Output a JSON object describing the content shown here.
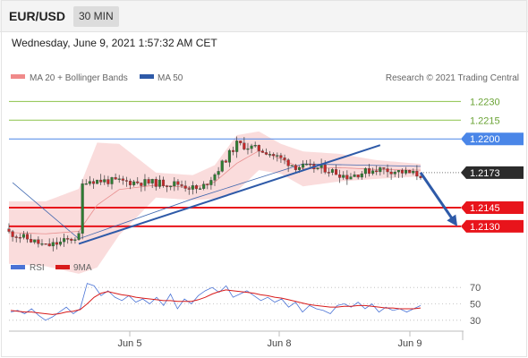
{
  "header": {
    "symbol": "EUR/USD",
    "interval": "30 MIN",
    "datetime": "Wednesday, June 9, 2021 1:57:32 AM CET"
  },
  "legend": {
    "ma20_bb": "MA 20 + Bollinger Bands",
    "ma50": "MA 50",
    "credit": "Research © 2021 Trading Central",
    "rsi": "RSI",
    "rsi_ma": "9MA"
  },
  "colors": {
    "bollinger_fill": "#f9d6d6",
    "ma20": "#e88f8f",
    "ma50": "#2e5aa8",
    "resistance_green": "#8bc34a",
    "resistance_blue": "#4a86e8",
    "support_red": "#e8141b",
    "current_price_bg": "#2b2b2b",
    "trend_line": "#2e5aa8",
    "forecast_arrow": "#2e5aa8",
    "rsi_line": "#4a73d6",
    "rsi_ma_line": "#d81b1b",
    "candle_up": "#2e7d32",
    "candle_down": "#c62828"
  },
  "chart_data": [
    {
      "type": "candlestick",
      "title": "",
      "x_labels": [
        "Jun 5",
        "Jun 8",
        "Jun 9"
      ],
      "price_range": [
        1.2112,
        1.2241
      ],
      "levels": [
        {
          "label": "1.2230",
          "value": 1.223,
          "kind": "resistance",
          "color": "#8bc34a"
        },
        {
          "label": "1.2215",
          "value": 1.2215,
          "kind": "resistance",
          "color": "#8bc34a"
        },
        {
          "label": "1.2200",
          "value": 1.22,
          "kind": "pivot",
          "color": "#4a86e8"
        },
        {
          "label": "1.2173",
          "value": 1.2173,
          "kind": "current",
          "color": "#2b2b2b"
        },
        {
          "label": "1.2145",
          "value": 1.2145,
          "kind": "support",
          "color": "#e8141b"
        },
        {
          "label": "1.2130",
          "value": 1.213,
          "kind": "support",
          "color": "#e8141b"
        }
      ],
      "close_path": [
        [
          0,
          1.2125
        ],
        [
          5,
          1.212
        ],
        [
          10,
          1.2114
        ],
        [
          14,
          1.2117
        ],
        [
          19,
          1.2122
        ],
        [
          20,
          1.2163
        ],
        [
          21,
          1.2167
        ],
        [
          30,
          1.2166
        ],
        [
          38,
          1.2165
        ],
        [
          46,
          1.2164
        ],
        [
          52,
          1.2159
        ],
        [
          56,
          1.2172
        ],
        [
          62,
          1.2196
        ],
        [
          70,
          1.219
        ],
        [
          78,
          1.2178
        ],
        [
          86,
          1.2176
        ],
        [
          92,
          1.217
        ],
        [
          100,
          1.2176
        ],
        [
          106,
          1.2174
        ],
        [
          112,
          1.2171
        ]
      ],
      "trend_line": [
        [
          19,
          1.2116
        ],
        [
          101,
          1.2195
        ]
      ],
      "ma50_path": [
        [
          1,
          1.2165
        ],
        [
          19,
          1.212
        ],
        [
          50,
          1.2152
        ],
        [
          80,
          1.218
        ],
        [
          112,
          1.2178
        ]
      ],
      "forecast_arrow": [
        [
          112,
          1.2173
        ],
        [
          122,
          1.213
        ]
      ],
      "bollinger": [
        [
          0,
          1.215,
          1.21
        ],
        [
          10,
          1.215,
          1.2098
        ],
        [
          19,
          1.216,
          1.2092
        ],
        [
          24,
          1.2197,
          1.2097
        ],
        [
          30,
          1.2196,
          1.2123
        ],
        [
          40,
          1.2173,
          1.2153
        ],
        [
          50,
          1.2171,
          1.2151
        ],
        [
          56,
          1.2179,
          1.2152
        ],
        [
          62,
          1.2203,
          1.2158
        ],
        [
          68,
          1.2206,
          1.2175
        ],
        [
          74,
          1.2196,
          1.2172
        ],
        [
          80,
          1.219,
          1.2162
        ],
        [
          90,
          1.2188,
          1.2166
        ],
        [
          100,
          1.2183,
          1.2168
        ],
        [
          112,
          1.218,
          1.217
        ]
      ]
    },
    {
      "type": "line",
      "title": "",
      "ylim": [
        20,
        80
      ],
      "y_ticks": [
        70,
        50,
        30
      ],
      "series": [
        {
          "name": "RSI",
          "values": [
            40,
            42,
            38,
            44,
            36,
            30,
            34,
            40,
            46,
            38,
            44,
            75,
            72,
            60,
            66,
            58,
            54,
            60,
            52,
            56,
            50,
            58,
            48,
            62,
            44,
            56,
            50,
            60,
            66,
            70,
            64,
            72,
            58,
            62,
            66,
            60,
            54,
            58,
            52,
            56,
            46,
            52,
            40,
            48,
            44,
            42,
            38,
            48,
            50,
            46,
            52,
            44,
            50,
            40,
            46,
            42,
            44,
            40,
            44,
            48
          ]
        },
        {
          "name": "9MA",
          "values": [
            42,
            41,
            40,
            40,
            39,
            38,
            37,
            38,
            40,
            41,
            43,
            50,
            58,
            63,
            65,
            63,
            61,
            60,
            58,
            57,
            56,
            55,
            54,
            54,
            53,
            53,
            53,
            55,
            58,
            62,
            65,
            67,
            66,
            65,
            64,
            63,
            61,
            60,
            58,
            57,
            55,
            53,
            51,
            49,
            48,
            47,
            46,
            46,
            47,
            47,
            48,
            48,
            47,
            46,
            45,
            45,
            44,
            44,
            44,
            45
          ]
        }
      ]
    }
  ]
}
